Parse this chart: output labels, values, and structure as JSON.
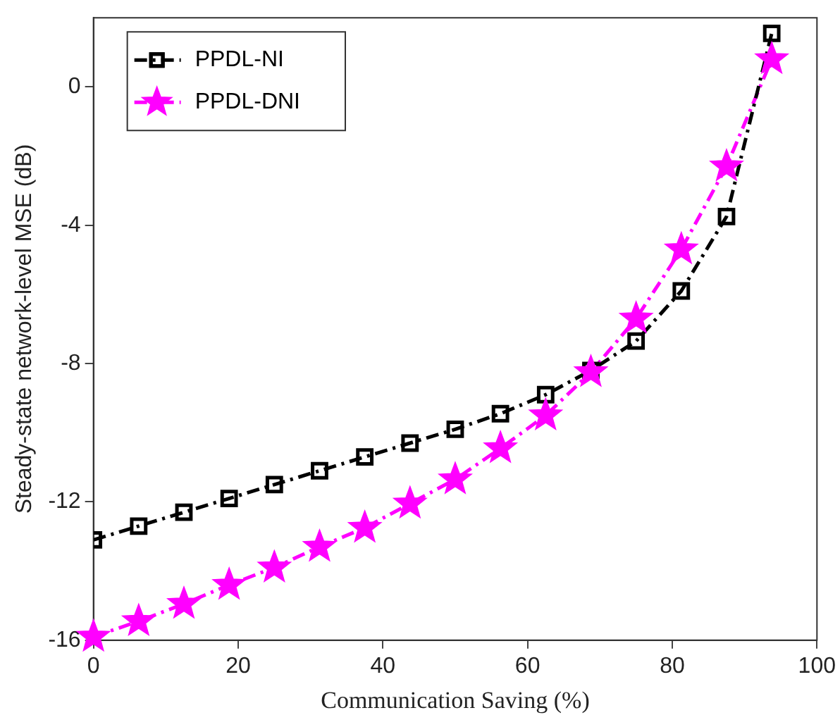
{
  "chart_data": {
    "type": "line",
    "xlabel": "Communication Saving (%)",
    "ylabel": "Steady-state network-level MSE (dB)",
    "x": [
      0,
      6.25,
      12.5,
      18.75,
      25,
      31.25,
      37.5,
      43.75,
      50,
      56.25,
      62.5,
      68.75,
      75,
      81.25,
      87.5,
      93.75
    ],
    "series": [
      {
        "name": "PPDL-NI",
        "color": "#000000",
        "marker": "square",
        "values": [
          -13.1,
          -12.7,
          -12.3,
          -11.9,
          -11.5,
          -11.1,
          -10.7,
          -10.3,
          -9.9,
          -9.45,
          -8.9,
          -8.2,
          -7.35,
          -5.9,
          -3.75,
          1.55
        ]
      },
      {
        "name": "PPDL-DNI",
        "color": "#ff00ff",
        "marker": "star",
        "values": [
          -15.9,
          -15.45,
          -14.95,
          -14.4,
          -13.9,
          -13.3,
          -12.75,
          -12.05,
          -11.35,
          -10.45,
          -9.5,
          -8.25,
          -6.7,
          -4.7,
          -2.3,
          0.8
        ]
      }
    ],
    "xlim": [
      0,
      100
    ],
    "xticks": [
      0,
      20,
      40,
      60,
      80,
      100
    ],
    "ylim": [
      -16,
      2
    ],
    "yticks": [
      -16,
      -12,
      -8,
      -4,
      0
    ],
    "grid": false,
    "legend": "top left",
    "line_style": "dashed"
  }
}
